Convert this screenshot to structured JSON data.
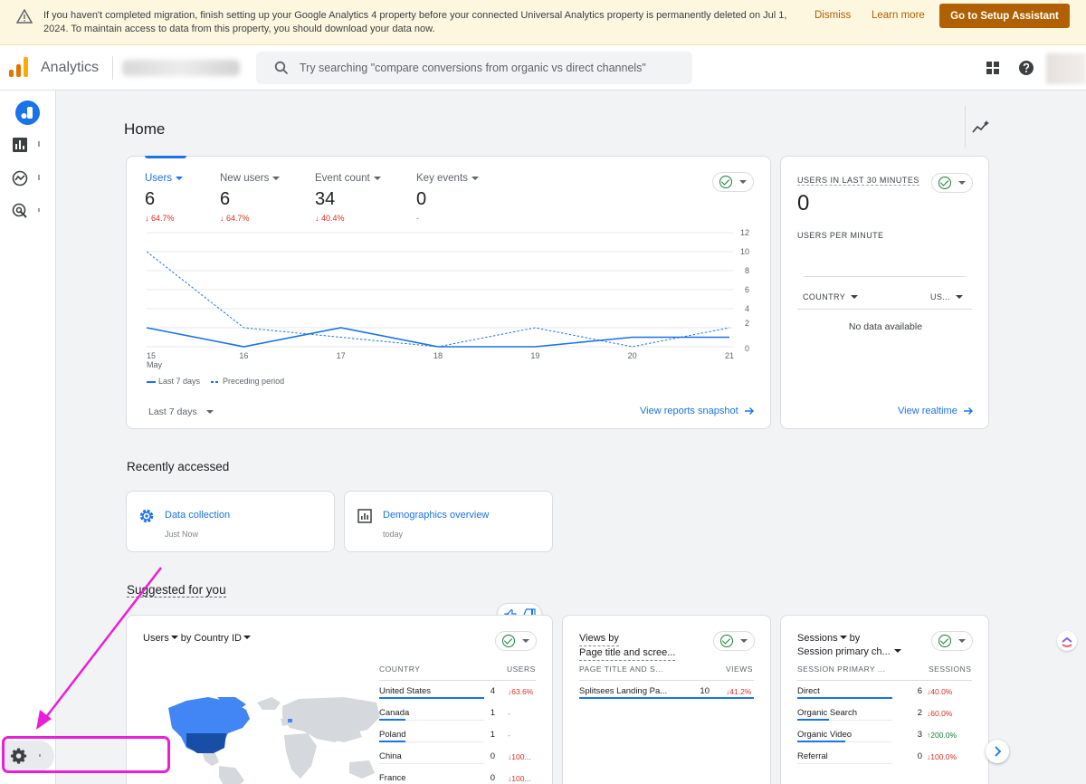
{
  "banner": {
    "message": "If you haven't completed migration, finish setting up your Google Analytics 4 property before your connected Universal Analytics property is permanently deleted on Jul 1, 2024. To maintain access to data from this property, you should download your data now.",
    "dismiss": "Dismiss",
    "learn_more": "Learn more",
    "setup": "Go to Setup Assistant"
  },
  "topbar": {
    "app_name": "Analytics",
    "search_placeholder": "Try searching \"compare conversions from organic vs direct channels\""
  },
  "page": {
    "title": "Home"
  },
  "overview": {
    "metrics": [
      {
        "label": "Users",
        "value": "6",
        "change": "64.7%",
        "direction": "down"
      },
      {
        "label": "New users",
        "value": "6",
        "change": "64.7%",
        "direction": "down"
      },
      {
        "label": "Event count",
        "value": "34",
        "change": "40.4%",
        "direction": "down"
      },
      {
        "label": "Key events",
        "value": "0",
        "change": "-",
        "direction": "none"
      }
    ],
    "legend_current": "Last 7 days",
    "legend_previous": "Preceding period",
    "date_range": "Last 7 days",
    "link": "View reports snapshot"
  },
  "chart_data": {
    "type": "line",
    "x": [
      "15 May",
      "16",
      "17",
      "18",
      "19",
      "20",
      "21"
    ],
    "series": [
      {
        "name": "Last 7 days",
        "values": [
          2,
          0,
          2,
          0,
          0,
          1,
          1
        ]
      },
      {
        "name": "Preceding period",
        "values": [
          10,
          2,
          1,
          0,
          2,
          0,
          2
        ]
      }
    ],
    "y_ticks": [
      "12",
      "10",
      "8",
      "6",
      "4",
      "2",
      "0"
    ],
    "ylim": [
      0,
      12
    ],
    "grid": true,
    "legend_position": "bottom-left"
  },
  "realtime": {
    "title": "USERS IN LAST 30 MINUTES",
    "value": "0",
    "subtitle": "USERS PER MINUTE",
    "col1": "COUNTRY",
    "col2": "US...",
    "empty": "No data available",
    "link": "View realtime"
  },
  "recent": {
    "title": "Recently accessed",
    "items": [
      {
        "name": "Data collection",
        "time": "Just Now"
      },
      {
        "name": "Demographics overview",
        "time": "today"
      }
    ]
  },
  "suggested": {
    "title": "Suggested for you",
    "country_card": {
      "metric": "Users",
      "dimension": "by Country ID",
      "col1": "COUNTRY",
      "col2": "USERS",
      "rows": [
        {
          "name": "United States",
          "value": "4",
          "change": "63.6%",
          "dir": "down",
          "share": 1.0
        },
        {
          "name": "Canada",
          "value": "1",
          "change": "-",
          "dir": "none",
          "share": 0.25
        },
        {
          "name": "Poland",
          "value": "1",
          "change": "-",
          "dir": "none",
          "share": 0.25
        },
        {
          "name": "China",
          "value": "0",
          "change": "100...",
          "dir": "down",
          "share": 0
        },
        {
          "name": "France",
          "value": "0",
          "change": "100...",
          "dir": "down",
          "share": 0
        }
      ]
    },
    "page_card": {
      "line1": "Views by",
      "line2": "Page title and scree...",
      "col1": "PAGE TITLE AND S...",
      "col2": "VIEWS",
      "rows": [
        {
          "name": "Splitsees Landing Pa...",
          "value": "10",
          "change": "41.2%",
          "dir": "down",
          "share": 1.0
        }
      ]
    },
    "session_card": {
      "metric": "Sessions",
      "line1_suffix": "by",
      "line2": "Session primary ch...",
      "col1": "SESSION PRIMARY ...",
      "col2": "SESSIONS",
      "rows": [
        {
          "name": "Direct",
          "value": "6",
          "change": "40.0%",
          "dir": "down",
          "share": 1.0
        },
        {
          "name": "Organic Search",
          "value": "2",
          "change": "60.0%",
          "dir": "down",
          "share": 0.33
        },
        {
          "name": "Organic Video",
          "value": "3",
          "change": "200.0%",
          "dir": "up",
          "share": 0.5
        },
        {
          "name": "Referral",
          "value": "0",
          "change": "100.0%",
          "dir": "down",
          "share": 0
        }
      ]
    }
  },
  "colors": {
    "accent": "#1a73e8",
    "banner_button": "#b06000",
    "annotation": "#e91edb",
    "negative": "#d93025",
    "positive": "#188038"
  }
}
